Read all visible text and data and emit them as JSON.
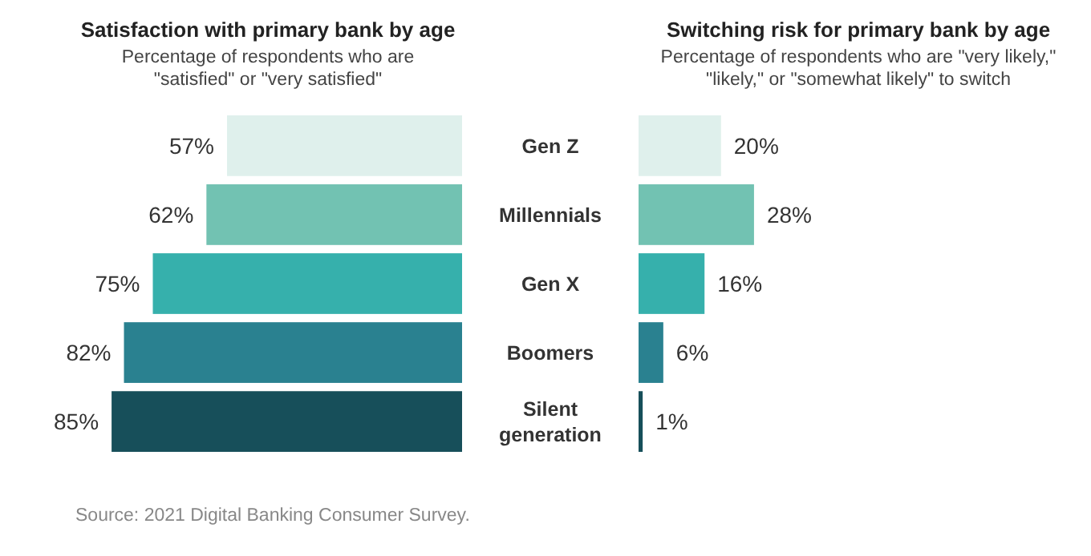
{
  "chart_data": [
    {
      "type": "bar",
      "orientation": "horizontal",
      "title": "Satisfaction with primary bank by age",
      "subtitle": "Percentage of respondents who are \"satisfied\" or \"very satisfied\"",
      "categories": [
        "Gen Z",
        "Millennials",
        "Gen X",
        "Boomers",
        "Silent generation"
      ],
      "values": [
        57,
        62,
        75,
        82,
        85
      ],
      "value_labels": [
        "57%",
        "62%",
        "75%",
        "82%",
        "85%"
      ],
      "colors": [
        "#dff0ec",
        "#72c2b2",
        "#36b0ac",
        "#2a8190",
        "#174f5a"
      ],
      "annotations": [
        "Source: 2021 Digital Banking Consumer Survey."
      ]
    },
    {
      "type": "bar",
      "orientation": "horizontal",
      "title": "Switching risk for primary bank by age",
      "subtitle": "Percentage of respondents who are \"very likely,\" \"likely,\" or \"somewhat likely\" to switch",
      "categories": [
        null,
        null,
        null,
        null,
        null
      ],
      "values": [
        20,
        28,
        16,
        6,
        1
      ],
      "value_labels": [
        "20%",
        "28%",
        "16%",
        "6%",
        "1%"
      ],
      "colors": [
        "#dff0ec",
        "#72c2b2",
        "#36b0ac",
        "#2a8190",
        "#174f5a"
      ]
    }
  ]
}
